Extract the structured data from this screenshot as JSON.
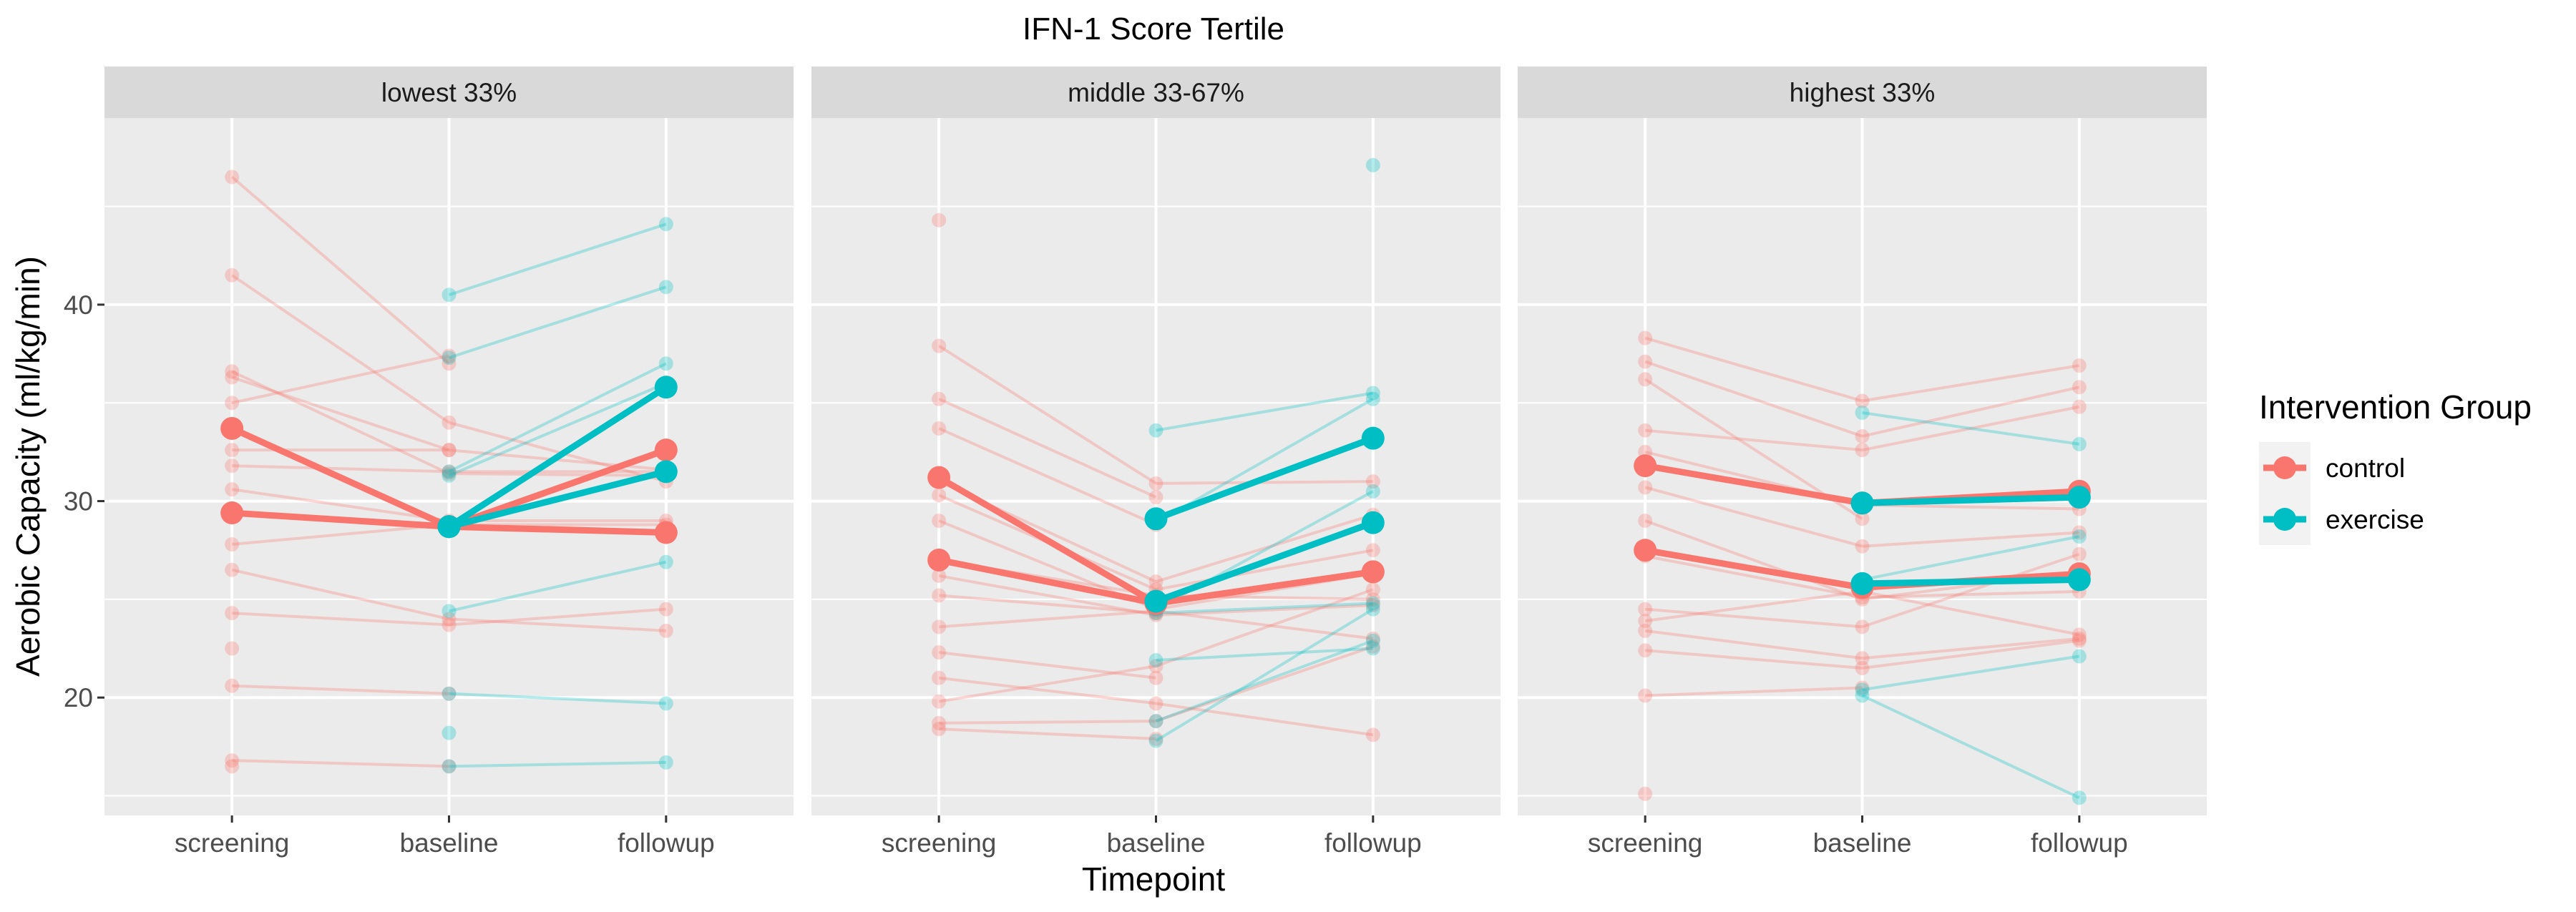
{
  "chart_data": {
    "type": "line",
    "title": "IFN-1 Score Tertile",
    "xlabel": "Timepoint",
    "ylabel": "Aerobic Capacity (ml/kg/min)",
    "categories": [
      "screening",
      "baseline",
      "followup"
    ],
    "ylim": [
      14,
      49.5
    ],
    "yticks": [
      20,
      30,
      40
    ],
    "grid": true,
    "legend": {
      "title": "Intervention Group",
      "position": "right",
      "entries": [
        {
          "name": "control",
          "color": "#F8766D"
        },
        {
          "name": "exercise",
          "color": "#00BFC4"
        }
      ]
    },
    "panels": [
      {
        "label": "lowest 33%",
        "individual": {
          "control": [
            [
              46.5,
              37.0,
              null
            ],
            [
              41.5,
              34.0,
              31.0
            ],
            [
              36.6,
              31.4,
              31.3
            ],
            [
              36.3,
              32.6,
              null
            ],
            [
              35.0,
              37.4,
              null
            ],
            [
              32.6,
              32.6,
              31.6
            ],
            [
              31.8,
              31.5,
              31.5
            ],
            [
              30.6,
              29.0,
              29.0
            ],
            [
              27.8,
              28.8,
              28.8
            ],
            [
              26.5,
              24.0,
              23.4
            ],
            [
              24.3,
              23.7,
              24.5
            ],
            [
              22.5,
              null,
              null
            ],
            [
              20.6,
              20.2,
              null
            ],
            [
              16.8,
              16.5,
              null
            ],
            [
              16.5,
              null,
              null
            ]
          ],
          "exercise": [
            [
              null,
              40.5,
              44.1
            ],
            [
              null,
              37.3,
              40.9
            ],
            [
              null,
              31.5,
              37.0
            ],
            [
              null,
              31.3,
              36.0
            ],
            [
              null,
              24.4,
              26.9
            ],
            [
              null,
              20.2,
              19.7
            ],
            [
              null,
              18.2,
              null
            ],
            [
              null,
              16.5,
              16.7
            ]
          ]
        },
        "means": {
          "control": [
            [
              33.7,
              28.7,
              32.6
            ],
            [
              29.4,
              28.7,
              28.4
            ]
          ],
          "exercise": [
            [
              null,
              28.7,
              35.8
            ],
            [
              null,
              28.7,
              31.5
            ]
          ]
        }
      },
      {
        "label": "middle 33-67%",
        "individual": {
          "control": [
            [
              44.3,
              null,
              null
            ],
            [
              37.9,
              30.9,
              31.0
            ],
            [
              35.2,
              30.2,
              null
            ],
            [
              33.7,
              28.8,
              null
            ],
            [
              31.0,
              25.9,
              29.3
            ],
            [
              30.3,
              25.5,
              27.5
            ],
            [
              29.0,
              24.5,
              26.3
            ],
            [
              27.0,
              25.2,
              25.0
            ],
            [
              26.2,
              24.2,
              24.7
            ],
            [
              25.2,
              24.3,
              null
            ],
            [
              23.6,
              24.4,
              23.0
            ],
            [
              22.3,
              21.0,
              null
            ],
            [
              21.0,
              19.7,
              18.1
            ],
            [
              19.8,
              21.6,
              25.5
            ],
            [
              18.7,
              18.8,
              22.6
            ],
            [
              18.4,
              17.9,
              null
            ]
          ],
          "exercise": [
            [
              null,
              33.6,
              35.5
            ],
            [
              null,
              28.9,
              35.2
            ],
            [
              null,
              24.5,
              30.5
            ],
            [
              null,
              24.3,
              24.8
            ],
            [
              null,
              21.9,
              22.5
            ],
            [
              null,
              18.8,
              22.9
            ],
            [
              null,
              17.8,
              24.5
            ],
            [
              null,
              null,
              47.1
            ]
          ]
        },
        "means": {
          "control": [
            [
              31.2,
              24.8,
              26.4
            ],
            [
              27.0,
              24.8,
              26.4
            ]
          ],
          "exercise": [
            [
              null,
              29.1,
              33.2
            ],
            [
              null,
              24.9,
              28.9
            ]
          ]
        }
      },
      {
        "label": "highest 33%",
        "individual": {
          "control": [
            [
              38.3,
              35.1,
              36.9
            ],
            [
              37.1,
              33.3,
              35.8
            ],
            [
              36.2,
              29.1,
              null
            ],
            [
              33.6,
              32.6,
              34.8
            ],
            [
              32.5,
              29.8,
              29.6
            ],
            [
              30.7,
              27.7,
              28.4
            ],
            [
              29.0,
              25.0,
              26.4
            ],
            [
              27.2,
              25.1,
              25.4
            ],
            [
              24.5,
              23.6,
              27.3
            ],
            [
              23.9,
              25.4,
              23.2
            ],
            [
              23.4,
              22.0,
              23.0
            ],
            [
              22.4,
              21.5,
              22.9
            ],
            [
              20.1,
              20.5,
              null
            ],
            [
              15.1,
              null,
              null
            ]
          ],
          "exercise": [
            [
              null,
              34.5,
              32.9
            ],
            [
              null,
              26.0,
              28.2
            ],
            [
              null,
              20.4,
              22.1
            ],
            [
              null,
              20.1,
              14.9
            ]
          ]
        },
        "means": {
          "control": [
            [
              31.8,
              29.9,
              30.5
            ],
            [
              27.5,
              25.6,
              26.3
            ]
          ],
          "exercise": [
            [
              null,
              29.9,
              30.2
            ],
            [
              null,
              25.8,
              26.0
            ]
          ]
        }
      }
    ]
  }
}
